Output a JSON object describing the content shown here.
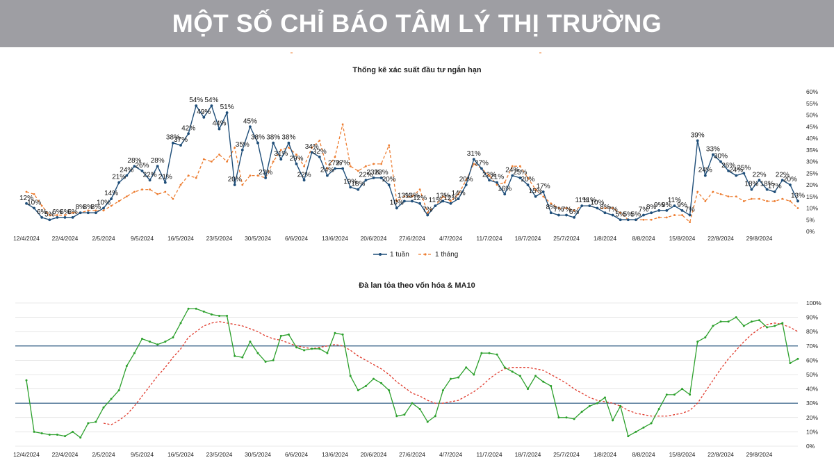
{
  "banner": {
    "title": "MỘT SỐ CHỈ BÁO TÂM LÝ THỊ TRƯỜNG"
  },
  "colors": {
    "banner_bg": "#9e9ea3",
    "blue": "#1f4e79",
    "orange": "#ed7d31",
    "green": "#2ca02c",
    "red_dash": "#e0392b",
    "hline": "#1f4e79"
  },
  "chart_data": [
    {
      "type": "line",
      "title": "Thống kê xác suất đầu tư ngắn hạn",
      "x_ticks": [
        "12/4/2024",
        "22/4/2024",
        "2/5/2024",
        "9/5/2024",
        "16/5/2024",
        "23/5/2024",
        "30/5/2024",
        "6/6/2024",
        "13/6/2024",
        "20/6/2024",
        "27/6/2024",
        "4/7/2024",
        "11/7/2024",
        "18/7/2024",
        "25/7/2024",
        "1/8/2024",
        "8/8/2024",
        "15/8/2024",
        "22/8/2024",
        "29/8/2024"
      ],
      "y_ticks": [
        "0%",
        "5%",
        "10%",
        "15%",
        "20%",
        "25%",
        "30%",
        "35%",
        "40%",
        "45%",
        "50%",
        "55%",
        "60%"
      ],
      "ylim": [
        0,
        60
      ],
      "legend": [
        "1 tuần",
        "1 tháng"
      ],
      "series": [
        {
          "name": "1 tuần",
          "values": [
            12,
            10,
            6,
            5,
            6,
            6,
            6,
            8,
            8,
            8,
            10,
            14,
            21,
            24,
            28,
            26,
            22,
            28,
            21,
            38,
            37,
            42,
            54,
            49,
            54,
            44,
            51,
            20,
            35,
            45,
            38,
            23,
            38,
            31,
            38,
            29,
            22,
            34,
            32,
            24,
            27,
            27,
            19,
            18,
            22,
            23,
            23,
            20,
            10,
            13,
            13,
            12,
            7,
            11,
            13,
            12,
            14,
            20,
            31,
            27,
            22,
            21,
            16,
            24,
            23,
            20,
            15,
            17,
            8,
            7,
            7,
            6,
            11,
            11,
            10,
            8,
            7,
            5,
            5,
            5,
            7,
            8,
            9,
            9,
            11,
            9,
            7,
            39,
            24,
            33,
            30,
            26,
            24,
            25,
            18,
            22,
            18,
            17,
            22,
            20,
            13
          ],
          "labels": [
            "12%",
            "10%",
            "6%",
            "5%",
            "6%",
            "6%",
            "6%",
            "8%",
            "8%",
            "8%",
            "10%",
            "14%",
            "21%",
            "24%",
            "28%",
            "26%",
            "22%",
            "28%",
            "21%",
            "38%",
            "37%",
            "42%",
            "54%",
            "49%",
            "54%",
            "44%",
            "51%",
            "20%",
            "35%",
            "45%",
            "38%",
            "23%",
            "38%",
            "31%",
            "38%",
            "29%",
            "22%",
            "34%",
            "32%",
            "24%",
            "27%",
            "27%",
            "19%",
            "18%",
            "22%",
            "23%",
            "23%",
            "20%",
            "10%",
            "13%",
            "13%",
            "12%",
            "7%",
            "11%",
            "13%",
            "12%",
            "14%",
            "20%",
            "31%",
            "27%",
            "22%",
            "21%",
            "16%",
            "24%",
            "23%",
            "20%",
            "15%",
            "17%",
            "8%",
            "7%",
            "7%",
            "6%",
            "11%",
            "11%",
            "10%",
            "8%",
            "7%",
            "5%",
            "5%",
            "5%",
            "7%",
            "8%",
            "9%",
            "9%",
            "11%",
            "9%",
            "7%",
            "39%",
            "24%",
            "33%",
            "30%",
            "26%",
            "24%",
            "25%",
            "18%",
            "22%",
            "18%",
            "17%",
            "22%",
            "20%",
            "13%"
          ]
        },
        {
          "name": "1 tháng",
          "values": [
            17,
            16,
            11,
            7,
            7,
            7,
            8,
            8,
            9,
            9,
            9,
            11,
            13,
            15,
            17,
            18,
            18,
            16,
            17,
            14,
            20,
            24,
            23,
            31,
            30,
            33,
            30,
            36,
            20,
            24,
            24,
            23,
            30,
            35,
            36,
            33,
            28,
            36,
            39,
            27,
            32,
            46,
            28,
            26,
            28,
            29,
            29,
            37,
            13,
            15,
            15,
            18,
            8,
            11,
            15,
            13,
            16,
            22,
            29,
            27,
            24,
            20,
            21,
            28,
            28,
            23,
            18,
            15,
            12,
            10,
            10,
            9,
            11,
            11,
            10,
            10,
            10,
            8,
            5,
            5,
            5,
            5,
            6,
            6,
            7,
            7,
            4,
            17,
            13,
            17,
            16,
            15,
            15,
            13,
            14,
            14,
            13,
            13,
            14,
            13,
            10
          ]
        }
      ]
    },
    {
      "type": "line",
      "title": "Đà lan tỏa theo vốn hóa & MA10",
      "x_ticks": [
        "12/4/2024",
        "22/4/2024",
        "2/5/2024",
        "9/5/2024",
        "16/5/2024",
        "23/5/2024",
        "30/5/2024",
        "6/6/2024",
        "13/6/2024",
        "20/6/2024",
        "27/6/2024",
        "4/7/2024",
        "11/7/2024",
        "18/7/2024",
        "25/7/2024",
        "1/8/2024",
        "8/8/2024",
        "15/8/2024",
        "22/8/2024",
        "29/8/2024"
      ],
      "y_ticks": [
        "0%",
        "10%",
        "20%",
        "30%",
        "40%",
        "50%",
        "60%",
        "70%",
        "80%",
        "90%",
        "100%"
      ],
      "ylim": [
        0,
        100
      ],
      "reference_lines": [
        70,
        30
      ],
      "series": [
        {
          "name": "Đà lan tỏa",
          "values": [
            46,
            10,
            9,
            8,
            8,
            7,
            10,
            6,
            16,
            17,
            27,
            33,
            39,
            56,
            65,
            75,
            73,
            71,
            73,
            76,
            86,
            96,
            96,
            94,
            92,
            91,
            91,
            63,
            62,
            73,
            65,
            59,
            60,
            77,
            78,
            69,
            67,
            68,
            68,
            65,
            79,
            78,
            49,
            39,
            42,
            47,
            44,
            39,
            21,
            22,
            30,
            26,
            17,
            21,
            39,
            47,
            48,
            55,
            50,
            65,
            65,
            64,
            55,
            52,
            49,
            40,
            49,
            45,
            42,
            20,
            20,
            19,
            24,
            28,
            30,
            34,
            18,
            28,
            7,
            10,
            13,
            16,
            26,
            36,
            36,
            40,
            36,
            73,
            76,
            84,
            87,
            87,
            90,
            84,
            87,
            88,
            83,
            84,
            86,
            58,
            61
          ]
        },
        {
          "name": "MA10",
          "values": [
            null,
            null,
            null,
            null,
            null,
            null,
            null,
            null,
            null,
            null,
            16,
            15,
            18,
            22,
            28,
            35,
            42,
            49,
            55,
            62,
            68,
            76,
            80,
            84,
            86,
            87,
            86,
            85,
            84,
            82,
            80,
            77,
            75,
            74,
            72,
            70,
            69,
            68,
            69,
            70,
            71,
            70,
            67,
            63,
            60,
            57,
            54,
            50,
            45,
            41,
            37,
            35,
            32,
            30,
            30,
            31,
            32,
            35,
            38,
            42,
            47,
            51,
            54,
            55,
            55,
            55,
            54,
            53,
            50,
            47,
            44,
            40,
            37,
            34,
            32,
            31,
            30,
            28,
            25,
            23,
            22,
            21,
            21,
            21,
            22,
            23,
            25,
            30,
            38,
            46,
            54,
            61,
            67,
            73,
            78,
            82,
            85,
            86,
            85,
            83,
            80
          ]
        }
      ]
    }
  ]
}
